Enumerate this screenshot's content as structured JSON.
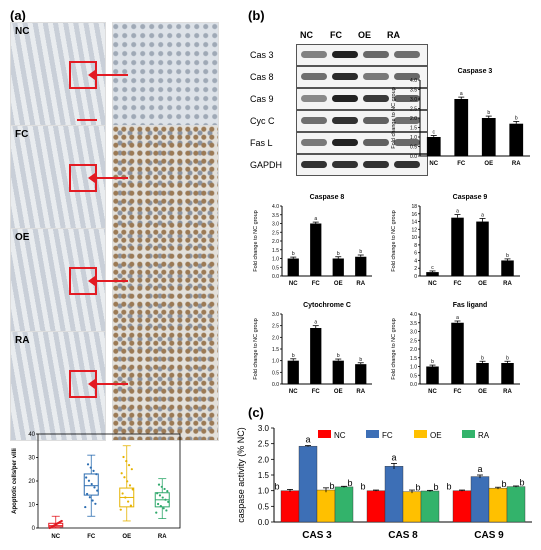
{
  "panels": {
    "a": "(a)",
    "b": "(b)",
    "c": "(c)"
  },
  "micrographs": [
    "NC",
    "FC",
    "OE",
    "RA"
  ],
  "western_blot": {
    "columns": [
      "NC",
      "FC",
      "OE",
      "RA"
    ],
    "rows": [
      "Cas 3",
      "Cas 8",
      "Cas 9",
      "Cyc C",
      "Fas L",
      "GAPDH"
    ],
    "band_intensity": [
      [
        0.4,
        1.0,
        0.55,
        0.5
      ],
      [
        0.5,
        0.95,
        0.45,
        0.55
      ],
      [
        0.35,
        1.0,
        0.85,
        0.6
      ],
      [
        0.5,
        0.9,
        0.6,
        0.5
      ],
      [
        0.45,
        1.0,
        0.6,
        0.55
      ],
      [
        0.9,
        0.9,
        0.9,
        0.9
      ]
    ]
  },
  "chart_data": [
    {
      "id": "apoptotic",
      "type": "box",
      "ylabel": "Apoptotic cells/per villi",
      "categories": [
        "NC",
        "FC",
        "OE",
        "RA"
      ],
      "ylim": [
        0,
        40
      ],
      "yticks": [
        0,
        10,
        20,
        30,
        40
      ],
      "colors": [
        "#e31b23",
        "#2b6cb0",
        "#e5b200",
        "#2fa86b"
      ],
      "boxes": [
        {
          "min": 0,
          "q1": 0.5,
          "median": 1,
          "q3": 2,
          "max": 5
        },
        {
          "min": 5,
          "q1": 14,
          "median": 18,
          "q3": 23,
          "max": 31
        },
        {
          "min": 3,
          "q1": 9,
          "median": 13,
          "q3": 17,
          "max": 35
        },
        {
          "min": 4,
          "q1": 9,
          "median": 12,
          "q3": 15,
          "max": 21
        }
      ]
    },
    {
      "id": "caspase3",
      "type": "bar",
      "title": "Caspase 3",
      "ylabel": "Fold change to NC group",
      "categories": [
        "NC",
        "FC",
        "OE",
        "RA"
      ],
      "values": [
        1.0,
        3.0,
        2.0,
        1.7
      ],
      "errors": [
        0.08,
        0.1,
        0.1,
        0.12
      ],
      "letters": [
        "c",
        "a",
        "b",
        "b"
      ],
      "ylim": [
        0,
        4
      ],
      "yticks": [
        "0.0",
        "0.5",
        "1.0",
        "1.5",
        "2.0",
        "2.5",
        "3.0",
        "3.5",
        "4.0"
      ]
    },
    {
      "id": "caspase8",
      "type": "bar",
      "title": "Caspase 8",
      "ylabel": "Fold change to NC group",
      "categories": [
        "NC",
        "FC",
        "OE",
        "RA"
      ],
      "values": [
        1.0,
        3.0,
        1.0,
        1.1
      ],
      "errors": [
        0.08,
        0.08,
        0.1,
        0.1
      ],
      "letters": [
        "b",
        "a",
        "b",
        "b"
      ],
      "ylim": [
        0,
        4
      ],
      "yticks": [
        "0.0",
        "0.5",
        "1.0",
        "1.5",
        "2.0",
        "2.5",
        "3.0",
        "3.5",
        "4.0"
      ]
    },
    {
      "id": "caspase9",
      "type": "bar",
      "title": "Caspase 9",
      "ylabel": "Fold change to NC group",
      "categories": [
        "NC",
        "FC",
        "OE",
        "RA"
      ],
      "values": [
        1.0,
        15.0,
        14.0,
        4.0
      ],
      "errors": [
        0.3,
        0.8,
        0.8,
        0.4
      ],
      "letters": [
        "c",
        "a",
        "a",
        "b"
      ],
      "ylim": [
        0,
        18
      ],
      "yticks": [
        "0",
        "2",
        "4",
        "6",
        "8",
        "10",
        "12",
        "14",
        "16",
        "18"
      ]
    },
    {
      "id": "cytochrome",
      "type": "bar",
      "title": "Cytochrome C",
      "ylabel": "Fold change to NC group",
      "categories": [
        "NC",
        "FC",
        "OE",
        "RA"
      ],
      "values": [
        1.0,
        2.4,
        1.0,
        0.85
      ],
      "errors": [
        0.08,
        0.1,
        0.07,
        0.06
      ],
      "letters": [
        "b",
        "a",
        "b",
        "b"
      ],
      "ylim": [
        0,
        3
      ],
      "yticks": [
        "0.0",
        "0.5",
        "1.0",
        "1.5",
        "2.0",
        "2.5",
        "3.0"
      ]
    },
    {
      "id": "fasligand",
      "type": "bar",
      "title": "Fas ligand",
      "ylabel": "Fold change to NC group",
      "categories": [
        "NC",
        "FC",
        "OE",
        "RA"
      ],
      "values": [
        1.0,
        3.5,
        1.2,
        1.2
      ],
      "errors": [
        0.08,
        0.1,
        0.1,
        0.1
      ],
      "letters": [
        "b",
        "a",
        "b",
        "b"
      ],
      "ylim": [
        0,
        4
      ],
      "yticks": [
        "0.0",
        "0.5",
        "1.0",
        "1.5",
        "2.0",
        "2.5",
        "3.0",
        "3.5",
        "4.0"
      ]
    },
    {
      "id": "caspase_activity",
      "type": "bar",
      "ylabel": "caspase activity (% NC)",
      "categories": [
        "CAS 3",
        "CAS 8",
        "CAS 9"
      ],
      "series": [
        {
          "name": "NC",
          "color": "#ff0000",
          "values": [
            1.0,
            1.0,
            1.0
          ],
          "errors": [
            0.04,
            0.02,
            0.02
          ],
          "letters": [
            "b",
            "b",
            "b"
          ]
        },
        {
          "name": "FC",
          "color": "#3d6fb6",
          "values": [
            2.42,
            1.78,
            1.45
          ],
          "errors": [
            0.02,
            0.09,
            0.05
          ],
          "letters": [
            "a",
            "a",
            "a"
          ]
        },
        {
          "name": "OE",
          "color": "#ffc000",
          "values": [
            1.02,
            0.97,
            1.08
          ],
          "errors": [
            0.07,
            0.05,
            0.03
          ],
          "letters": [
            "b",
            "b",
            "b"
          ]
        },
        {
          "name": "RA",
          "color": "#33b36b",
          "values": [
            1.12,
            0.99,
            1.13
          ],
          "errors": [
            0.02,
            0.02,
            0.02
          ],
          "letters": [
            "b",
            "b",
            "b"
          ]
        }
      ],
      "ylim": [
        0,
        3.0
      ],
      "yticks": [
        "0.0",
        "0.5",
        "1.0",
        "1.5",
        "2.0",
        "2.5",
        "3.0"
      ]
    }
  ]
}
